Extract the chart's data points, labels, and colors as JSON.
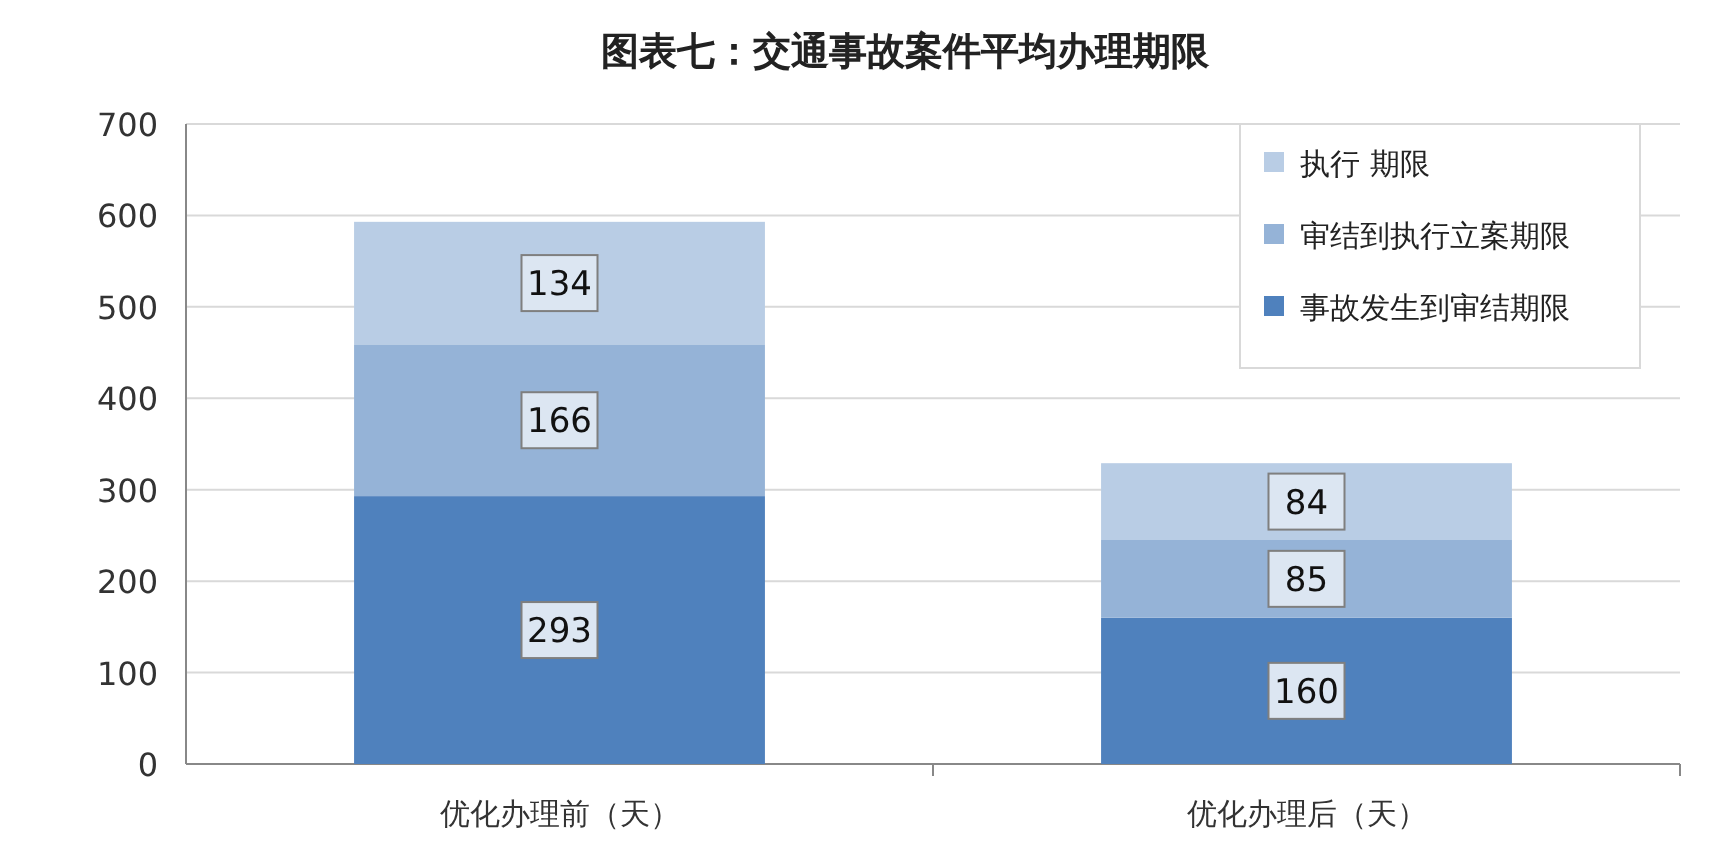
{
  "chart_data": {
    "type": "bar",
    "stacked": true,
    "title": "图表七：交通事故案件平均办理期限",
    "categories": [
      "优化办理前（天）",
      "优化办理后（天）"
    ],
    "series": [
      {
        "name": "事故发生到审结期限",
        "color": "#4f81bd",
        "values": [
          293,
          160
        ]
      },
      {
        "name": "审结到执行立案期限",
        "color": "#95b3d7",
        "values": [
          166,
          85
        ]
      },
      {
        "name": "执行 期限",
        "color": "#b9cde5",
        "values": [
          134,
          84
        ]
      }
    ],
    "ylim": [
      0,
      700
    ],
    "yticks": [
      0,
      100,
      200,
      300,
      400,
      500,
      600,
      700
    ],
    "grid": "y",
    "legend": "top right",
    "data_labels": true
  }
}
